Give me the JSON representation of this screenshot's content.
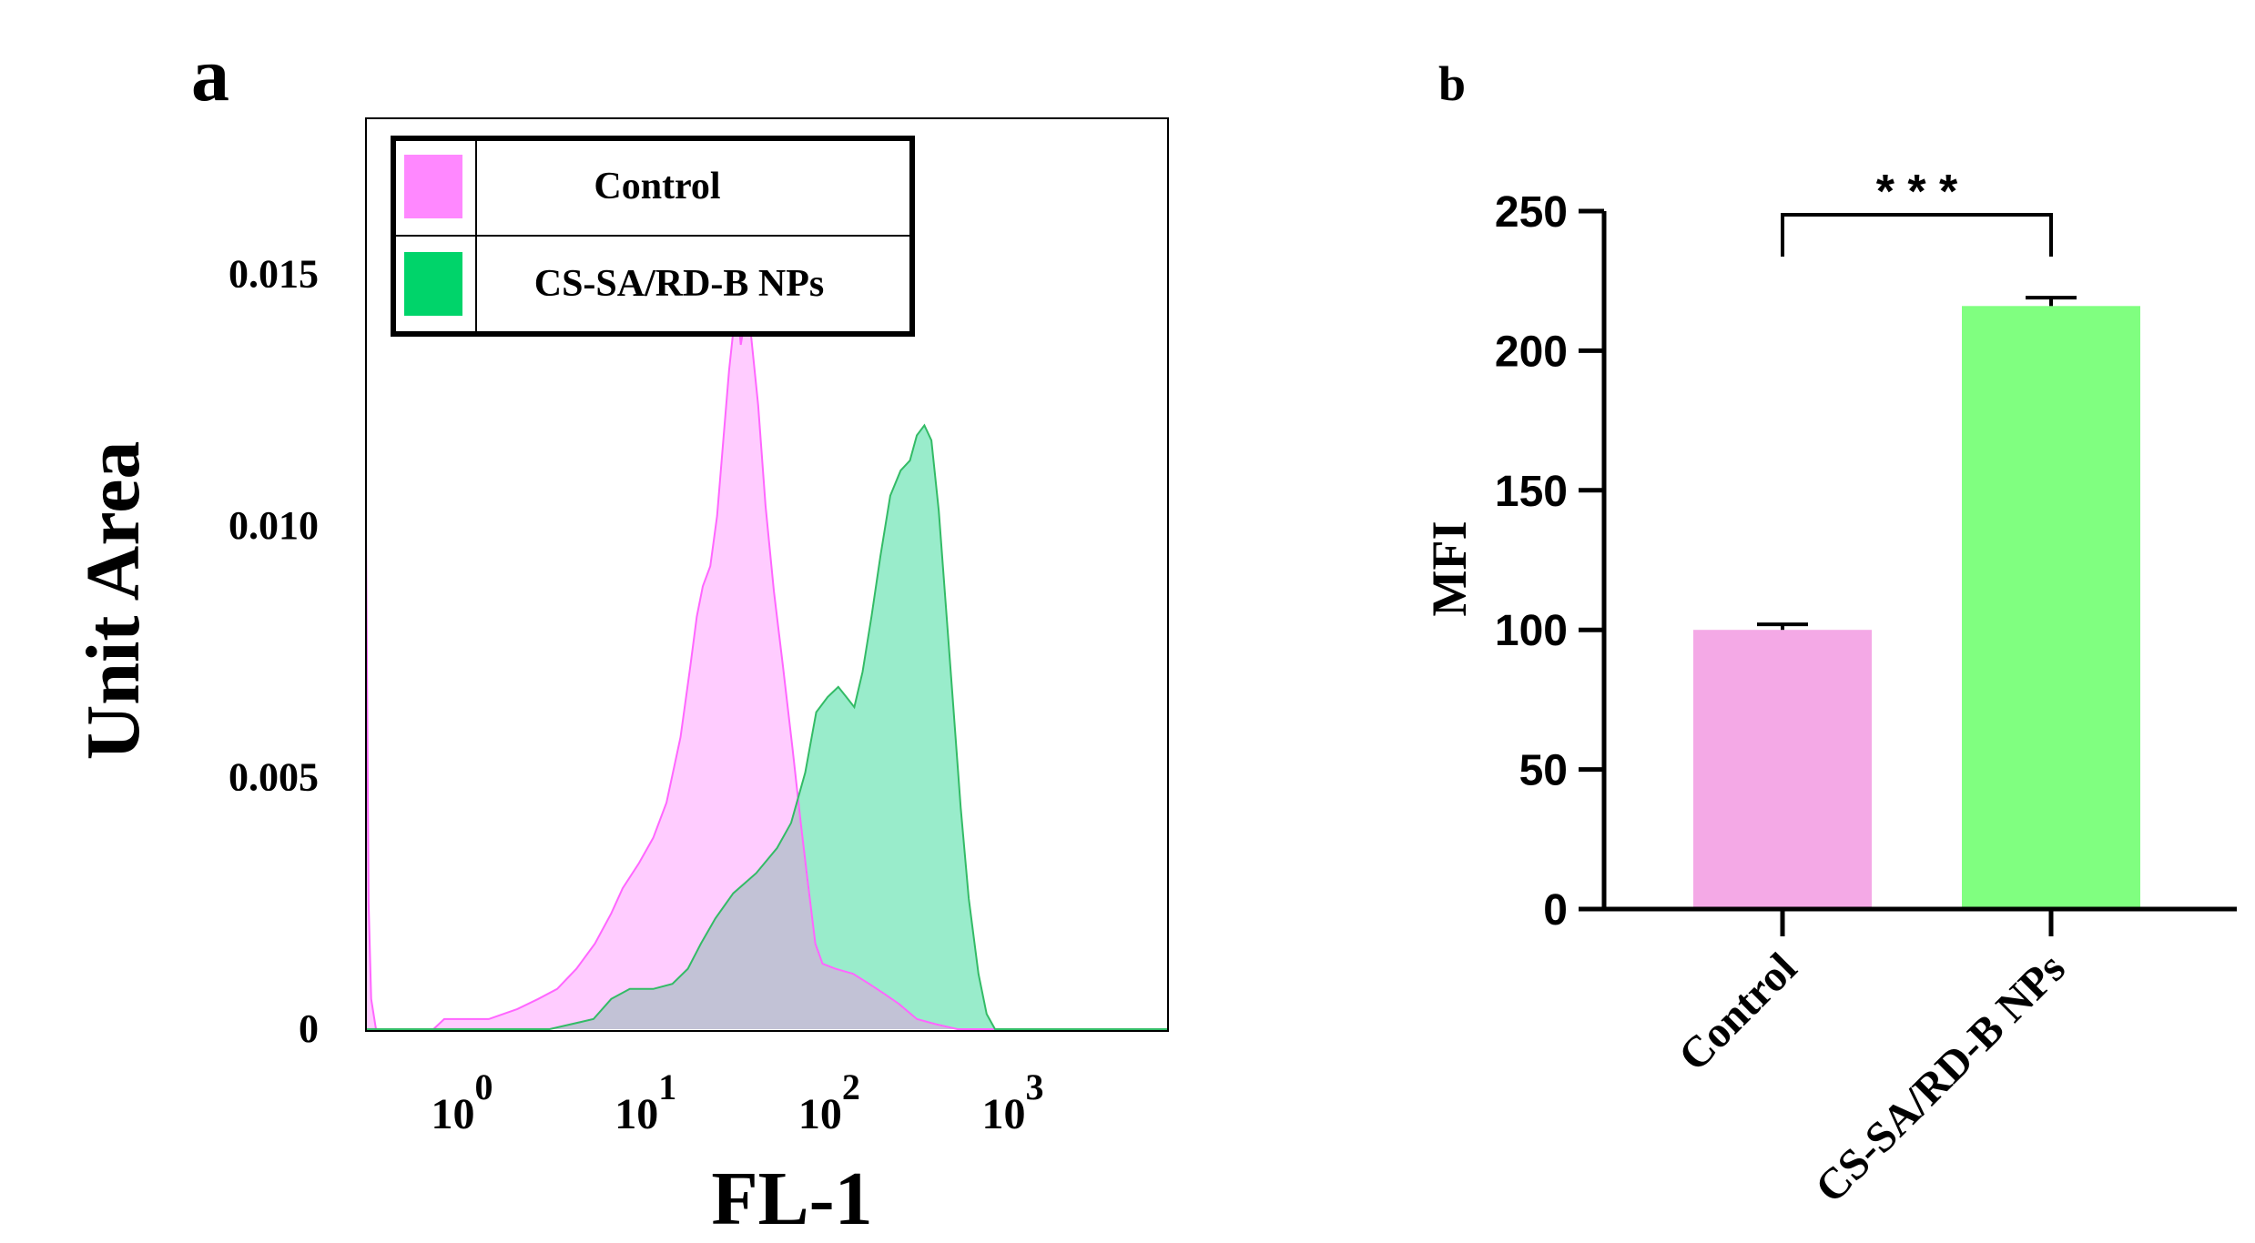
{
  "panel_labels": {
    "a": "a",
    "b": "b"
  },
  "colors": {
    "control_fill": "#ffccff",
    "control_line": "#ff66ff",
    "treated_fill": "#99eccb",
    "treated_line": "#33bb66",
    "overlap_fill": "#c2c2d6",
    "legend_control": "#ff88ff",
    "legend_treated": "#00d46a",
    "bar_control": "#f4a9e6",
    "bar_treated": "#80ff80"
  },
  "chart_data": [
    {
      "type": "area",
      "panel": "a",
      "xlabel": "FL-1",
      "ylabel": "Unit Area",
      "x_scale": "log",
      "xlim": [
        0.3,
        7000
      ],
      "ylim": [
        0,
        0.0181
      ],
      "x_ticks": [
        {
          "value": 1,
          "base": "10",
          "exp": "0"
        },
        {
          "value": 10,
          "base": "10",
          "exp": "1"
        },
        {
          "value": 100,
          "base": "10",
          "exp": "2"
        },
        {
          "value": 1000,
          "base": "10",
          "exp": "3"
        }
      ],
      "y_ticks": [
        {
          "value": 0,
          "label": "0"
        },
        {
          "value": 0.005,
          "label": "0.005"
        },
        {
          "value": 0.01,
          "label": "0.010"
        },
        {
          "value": 0.015,
          "label": "0.015"
        }
      ],
      "legend": [
        {
          "name": "Control",
          "color_key": "legend_control"
        },
        {
          "name": "CS-SA/RD-B NPs",
          "color_key": "legend_treated"
        }
      ],
      "series": [
        {
          "name": "Control",
          "points": [
            [
              0.3,
              0.01
            ],
            [
              0.31,
              0.0025
            ],
            [
              0.32,
              0.0006
            ],
            [
              0.34,
              0.0
            ],
            [
              0.7,
              0.0
            ],
            [
              0.8,
              0.0002
            ],
            [
              1.0,
              0.0002
            ],
            [
              1.4,
              0.0002
            ],
            [
              2.0,
              0.0004
            ],
            [
              2.6,
              0.0006
            ],
            [
              3.3,
              0.0008
            ],
            [
              4.2,
              0.0012
            ],
            [
              5.3,
              0.0017
            ],
            [
              6.5,
              0.0023
            ],
            [
              7.5,
              0.0028
            ],
            [
              9.2,
              0.0033
            ],
            [
              11,
              0.0038
            ],
            [
              13,
              0.0045
            ],
            [
              15.5,
              0.0058
            ],
            [
              17.5,
              0.0072
            ],
            [
              19,
              0.0082
            ],
            [
              20.5,
              0.0088
            ],
            [
              22.5,
              0.0092
            ],
            [
              24.5,
              0.0102
            ],
            [
              26.5,
              0.0117
            ],
            [
              28.5,
              0.0131
            ],
            [
              30.5,
              0.0141
            ],
            [
              31.5,
              0.0144
            ],
            [
              33,
              0.0136
            ],
            [
              35.5,
              0.0143
            ],
            [
              37.5,
              0.0138
            ],
            [
              41,
              0.0124
            ],
            [
              45,
              0.0104
            ],
            [
              50,
              0.0087
            ],
            [
              56,
              0.0072
            ],
            [
              63,
              0.0056
            ],
            [
              70,
              0.0041
            ],
            [
              76,
              0.003
            ],
            [
              84,
              0.0017
            ],
            [
              92,
              0.0013
            ],
            [
              108,
              0.0012
            ],
            [
              135,
              0.0011
            ],
            [
              165,
              0.0009
            ],
            [
              200,
              0.0007
            ],
            [
              240,
              0.0005
            ],
            [
              300,
              0.0002
            ],
            [
              380,
              0.0001
            ],
            [
              500,
              0.0
            ],
            [
              7000,
              0.0
            ]
          ]
        },
        {
          "name": "CS-SA/RD-B NPs",
          "points": [
            [
              0.3,
              0.0
            ],
            [
              3.0,
              0.0
            ],
            [
              5.2,
              0.0002
            ],
            [
              6.5,
              0.0006
            ],
            [
              8.2,
              0.0008
            ],
            [
              11,
              0.0008
            ],
            [
              14,
              0.0009
            ],
            [
              17,
              0.0012
            ],
            [
              20,
              0.0017
            ],
            [
              24,
              0.0022
            ],
            [
              30,
              0.0027
            ],
            [
              40,
              0.0031
            ],
            [
              52,
              0.0036
            ],
            [
              62,
              0.0041
            ],
            [
              74,
              0.0051
            ],
            [
              85,
              0.0063
            ],
            [
              98,
              0.0066
            ],
            [
              112,
              0.0068
            ],
            [
              124,
              0.0066
            ],
            [
              137,
              0.0064
            ],
            [
              152,
              0.0071
            ],
            [
              170,
              0.0082
            ],
            [
              190,
              0.0094
            ],
            [
              215,
              0.0106
            ],
            [
              245,
              0.0111
            ],
            [
              275,
              0.0113
            ],
            [
              300,
              0.0118
            ],
            [
              330,
              0.012
            ],
            [
              360,
              0.0117
            ],
            [
              395,
              0.0103
            ],
            [
              430,
              0.0085
            ],
            [
              470,
              0.0066
            ],
            [
              520,
              0.0044
            ],
            [
              575,
              0.0026
            ],
            [
              650,
              0.0011
            ],
            [
              720,
              0.0003
            ],
            [
              800,
              0.0
            ],
            [
              7000,
              0.0
            ]
          ]
        }
      ]
    },
    {
      "type": "bar",
      "panel": "b",
      "categories": [
        "Control",
        "CS-SA/RD-B NPs"
      ],
      "values": [
        100,
        216
      ],
      "errors": [
        2,
        3
      ],
      "ylabel": "MFI",
      "ylim": [
        0,
        250
      ],
      "y_ticks": [
        0,
        50,
        100,
        150,
        200,
        250
      ],
      "significance": "* * *"
    }
  ]
}
